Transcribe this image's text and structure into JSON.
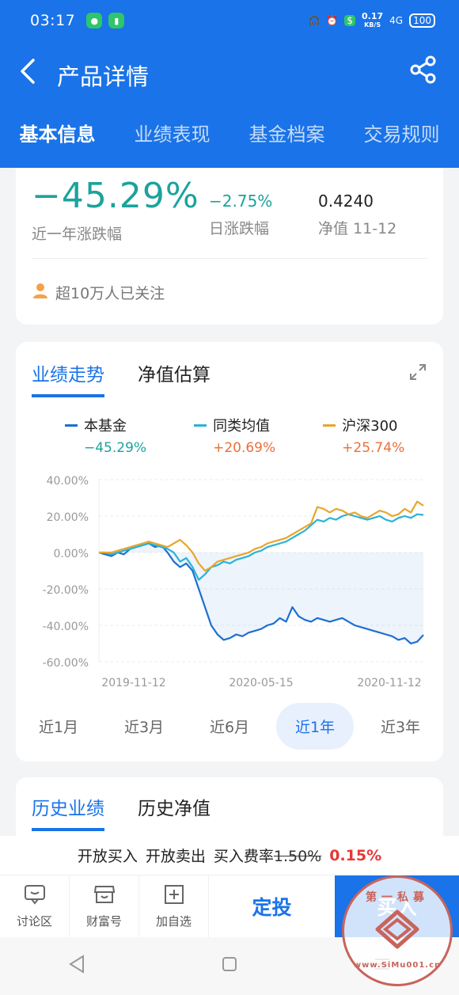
{
  "status": {
    "time": "03:17",
    "speed_value": "0.17",
    "speed_unit": "KB/S",
    "network": "4G",
    "battery": "100"
  },
  "header": {
    "title": "产品详情",
    "back_icon": "chevron-left-icon",
    "share_icon": "share-icon"
  },
  "tabs": [
    {
      "label": "基本信息"
    },
    {
      "label": "业绩表现"
    },
    {
      "label": "基金档案"
    },
    {
      "label": "交易规则"
    }
  ],
  "summary": {
    "year_change": "−45.29%",
    "year_change_label": "近一年涨跌幅",
    "day_change": "−2.75%",
    "day_change_label": "日涨跌幅",
    "nav": "0.4240",
    "nav_label": "净值 11-12",
    "followers": "超10万人已关注",
    "colors": {
      "down": "#1ba39c"
    }
  },
  "chart_card": {
    "tabs": [
      {
        "label": "业绩走势"
      },
      {
        "label": "净值估算"
      }
    ],
    "legend": [
      {
        "name": "本基金",
        "value": "−45.29%",
        "color": "#1e6fd0",
        "value_color": "#1ba39c"
      },
      {
        "name": "同类均值",
        "value": "+20.69%",
        "color": "#2ab3d6",
        "value_color": "#e8703a"
      },
      {
        "name": "沪深300",
        "value": "+25.74%",
        "color": "#e8a62c",
        "value_color": "#e8703a"
      }
    ],
    "ranges": [
      {
        "label": "近1月"
      },
      {
        "label": "近3月"
      },
      {
        "label": "近6月"
      },
      {
        "label": "近1年"
      },
      {
        "label": "近3年"
      }
    ]
  },
  "chart_data": {
    "type": "line",
    "title": "",
    "xlabel": "",
    "ylabel": "",
    "ylim": [
      -60,
      40
    ],
    "yticks": [
      "40.00%",
      "20.00%",
      "0.00%",
      "-20.00%",
      "-40.00%",
      "-60.00%"
    ],
    "xticks": [
      "2019-11-12",
      "2020-05-15",
      "2020-11-12"
    ],
    "x": [
      0,
      1,
      2,
      3,
      4,
      5,
      6,
      7,
      8,
      9,
      10,
      11,
      12,
      13,
      14,
      15,
      16,
      17,
      18,
      19,
      20,
      21,
      22,
      23,
      24,
      25,
      26,
      27,
      28,
      29,
      30,
      31,
      32,
      33,
      34,
      35,
      36,
      37,
      38,
      39,
      40,
      41,
      42,
      43,
      44,
      45,
      46,
      47,
      48,
      49,
      50,
      51,
      52
    ],
    "series": [
      {
        "name": "本基金",
        "color": "#1e6fd0",
        "fill": true,
        "values": [
          0,
          -1,
          -2,
          0,
          -1,
          2,
          3,
          4,
          5,
          3,
          4,
          0,
          -5,
          -8,
          -6,
          -10,
          -20,
          -30,
          -40,
          -45,
          -48,
          -47,
          -45,
          -46,
          -44,
          -43,
          -42,
          -40,
          -39,
          -36,
          -38,
          -30,
          -35,
          -37,
          -38,
          -36,
          -37,
          -38,
          -37,
          -36,
          -38,
          -40,
          -41,
          -42,
          -43,
          -44,
          -45,
          -46,
          -48,
          -47,
          -50,
          -49,
          -45.29
        ]
      },
      {
        "name": "同类均值",
        "color": "#2ab3d6",
        "fill": false,
        "values": [
          0,
          0,
          -1,
          0,
          1,
          2,
          3,
          4,
          5,
          4,
          3,
          2,
          0,
          -5,
          -3,
          -8,
          -15,
          -12,
          -8,
          -7,
          -5,
          -6,
          -4,
          -3,
          -2,
          0,
          1,
          3,
          4,
          5,
          6,
          8,
          10,
          12,
          15,
          18,
          17,
          19,
          18,
          20,
          21,
          20,
          19,
          18,
          19,
          20,
          18,
          17,
          19,
          20,
          19,
          21,
          20.69
        ]
      },
      {
        "name": "沪深300",
        "color": "#e8a62c",
        "fill": false,
        "values": [
          0,
          0,
          0,
          1,
          2,
          3,
          4,
          5,
          6,
          5,
          4,
          3,
          5,
          7,
          4,
          0,
          -6,
          -10,
          -8,
          -5,
          -4,
          -3,
          -2,
          -1,
          0,
          2,
          3,
          5,
          6,
          7,
          8,
          10,
          12,
          14,
          16,
          25,
          24,
          22,
          24,
          23,
          21,
          22,
          20,
          19,
          21,
          23,
          22,
          20,
          21,
          24,
          22,
          28,
          25.74
        ]
      }
    ],
    "grid": true,
    "legend": "top"
  },
  "history_card": {
    "tabs": [
      {
        "label": "历史业绩"
      },
      {
        "label": "历史净值"
      }
    ]
  },
  "fee": {
    "part1": "开放买入",
    "part2": "开放卖出",
    "part3": "买入费率",
    "old_rate": "1.50%",
    "new_rate": "0.15%"
  },
  "bottom": [
    {
      "label": "讨论区",
      "icon": "chat-icon"
    },
    {
      "label": "财富号",
      "icon": "store-icon"
    },
    {
      "label": "加自选",
      "icon": "plus-square-icon"
    }
  ],
  "fixed_invest_label": "定投",
  "buy_label": "买入",
  "watermark": {
    "top": "第一私募",
    "url": "www.SiMu001.cn"
  }
}
